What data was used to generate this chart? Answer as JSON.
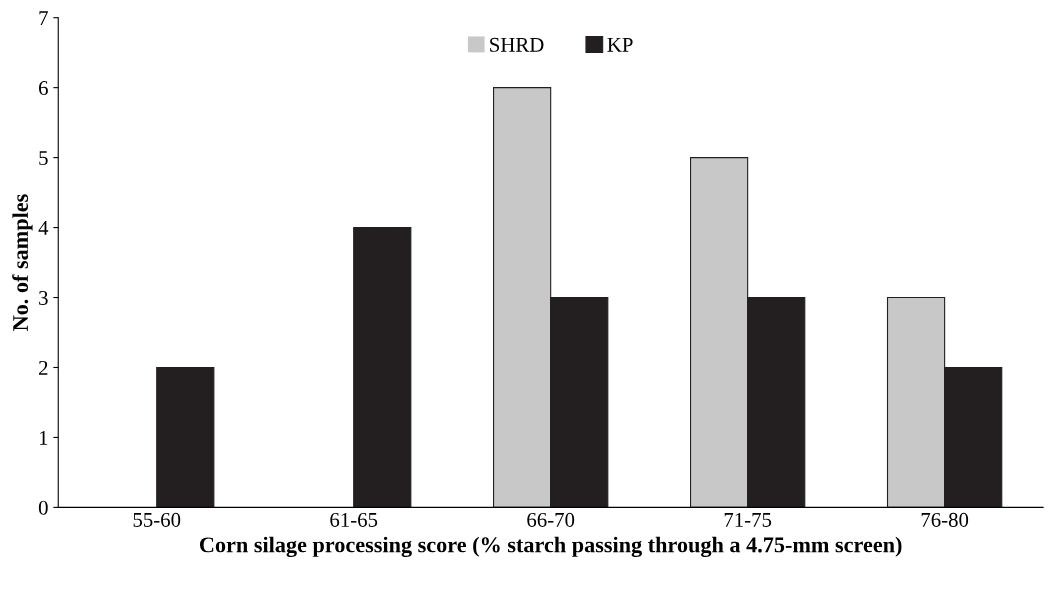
{
  "chart_data": {
    "type": "bar",
    "xlabel": "Corn silage processing score (% starch passing through a 4.75-mm screen)",
    "ylabel": "No. of samples",
    "categories": [
      "55-60",
      "61-65",
      "66-70",
      "71-75",
      "76-80"
    ],
    "series": [
      {
        "name": "SHRD",
        "color": "#c8c8c8",
        "values": [
          0,
          0,
          6,
          5,
          3
        ]
      },
      {
        "name": "KP",
        "color": "#231f20",
        "values": [
          2,
          4,
          3,
          3,
          2
        ]
      }
    ],
    "ylim": [
      0,
      7
    ],
    "yticks": [
      0,
      1,
      2,
      3,
      4,
      5,
      6,
      7
    ],
    "grid": false,
    "legend": "top"
  }
}
